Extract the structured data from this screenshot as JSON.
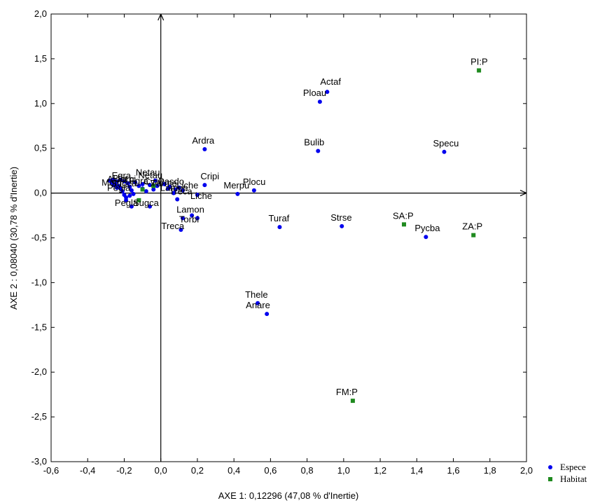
{
  "chart_data": {
    "type": "scatter",
    "title": "",
    "xlabel": "AXE 1: 0,12296 (47,08  % d'Inertie)",
    "ylabel": "AXE 2 : 0,08040 (30,78  % d'Inertie)",
    "xlim": [
      -0.6,
      2.0
    ],
    "ylim": [
      -3.0,
      2.0
    ],
    "x_ticks": [
      -0.6,
      -0.4,
      -0.2,
      0.0,
      0.2,
      0.4,
      0.6,
      0.8,
      1.0,
      1.2,
      1.4,
      1.6,
      1.8,
      2.0
    ],
    "y_ticks": [
      -3.0,
      -2.5,
      -2.0,
      -1.5,
      -1.0,
      -0.5,
      0.0,
      0.5,
      1.0,
      1.5,
      2.0
    ],
    "x_tick_labels": [
      "-0,6",
      "-0,4",
      "-0,2",
      "0,0",
      "0,2",
      "0,4",
      "0,6",
      "0,8",
      "1,0",
      "1,2",
      "1,4",
      "1,6",
      "1,8",
      "2,0"
    ],
    "y_tick_labels": [
      "-3,0",
      "-2,5",
      "-2,0",
      "-1,5",
      "-1,0",
      "-0,5",
      "0,0",
      "0,5",
      "1,0",
      "1,5",
      "2,0"
    ],
    "grid": false,
    "legend_position": "bottom-right",
    "series": [
      {
        "name": "Espece",
        "marker": "circle",
        "color": "#0000ee",
        "points": [
          {
            "label": "Actaf",
            "x": 0.91,
            "y": 1.13
          },
          {
            "label": "Ploau",
            "x": 0.87,
            "y": 1.02
          },
          {
            "label": "Bulib",
            "x": 0.86,
            "y": 0.47
          },
          {
            "label": "Specu",
            "x": 1.55,
            "y": 0.46
          },
          {
            "label": "Ardra",
            "x": 0.24,
            "y": 0.49
          },
          {
            "label": "Cripi",
            "x": 0.24,
            "y": 0.09
          },
          {
            "label": "Plocu",
            "x": 0.51,
            "y": 0.03
          },
          {
            "label": "Merpu",
            "x": 0.42,
            "y": -0.01
          },
          {
            "label": "Liche",
            "x": 0.2,
            "y": -0.02
          },
          {
            "label": "Netau",
            "x": -0.03,
            "y": 0.14
          },
          {
            "label": "Egra",
            "x": -0.1,
            "y": 0.1
          },
          {
            "label": "Turaf",
            "x": 0.65,
            "y": -0.38
          },
          {
            "label": "Strse",
            "x": 0.99,
            "y": -0.37
          },
          {
            "label": "Pycba",
            "x": 1.45,
            "y": -0.49
          },
          {
            "label": "Lamon",
            "x": 0.17,
            "y": -0.25
          },
          {
            "label": "Torbi",
            "x": 0.2,
            "y": -0.28
          },
          {
            "label": "Treca",
            "x": 0.11,
            "y": -0.41
          },
          {
            "label": "Pegla",
            "x": -0.16,
            "y": -0.15
          },
          {
            "label": "Sugca",
            "x": -0.06,
            "y": -0.15
          },
          {
            "label": "Thele",
            "x": 0.53,
            "y": -1.23
          },
          {
            "label": "Anare",
            "x": 0.58,
            "y": -1.35
          },
          {
            "label": "",
            "x": -0.28,
            "y": 0.14
          },
          {
            "label": "",
            "x": -0.27,
            "y": 0.12
          },
          {
            "label": "",
            "x": -0.26,
            "y": 0.15
          },
          {
            "label": "",
            "x": -0.25,
            "y": 0.1
          },
          {
            "label": "",
            "x": -0.24,
            "y": 0.13
          },
          {
            "label": "",
            "x": -0.23,
            "y": 0.08
          },
          {
            "label": "",
            "x": -0.22,
            "y": 0.05
          },
          {
            "label": "",
            "x": -0.21,
            "y": 0.02
          },
          {
            "label": "",
            "x": -0.2,
            "y": -0.02
          },
          {
            "label": "",
            "x": -0.19,
            "y": -0.05
          },
          {
            "label": "",
            "x": -0.18,
            "y": 0.11
          },
          {
            "label": "",
            "x": -0.17,
            "y": 0.07
          },
          {
            "label": "",
            "x": -0.16,
            "y": 0.03
          },
          {
            "label": "",
            "x": -0.15,
            "y": -0.01
          },
          {
            "label": "",
            "x": -0.14,
            "y": 0.12
          },
          {
            "label": "",
            "x": -0.12,
            "y": 0.08
          },
          {
            "label": "",
            "x": -0.1,
            "y": 0.05
          },
          {
            "label": "",
            "x": -0.08,
            "y": 0.02
          },
          {
            "label": "",
            "x": -0.06,
            "y": 0.09
          },
          {
            "label": "",
            "x": -0.04,
            "y": 0.04
          },
          {
            "label": "",
            "x": -0.02,
            "y": 0.08
          },
          {
            "label": "",
            "x": 0.02,
            "y": 0.1
          },
          {
            "label": "",
            "x": 0.05,
            "y": 0.07
          },
          {
            "label": "",
            "x": 0.08,
            "y": 0.04
          },
          {
            "label": "",
            "x": 0.1,
            "y": 0.06
          },
          {
            "label": "",
            "x": 0.12,
            "y": 0.03
          },
          {
            "label": "",
            "x": 0.07,
            "y": 0.0
          },
          {
            "label": "",
            "x": 0.09,
            "y": -0.07
          },
          {
            "label": "",
            "x": -0.19,
            "y": -0.08
          },
          {
            "label": "",
            "x": -0.24,
            "y": 0.06
          },
          {
            "label": "",
            "x": -0.26,
            "y": 0.09
          },
          {
            "label": "",
            "x": -0.22,
            "y": 0.15
          },
          {
            "label": "",
            "x": -0.2,
            "y": 0.13
          },
          {
            "label": "",
            "x": -0.17,
            "y": -0.03
          },
          {
            "label": "",
            "x": 0.04,
            "y": 0.05
          },
          {
            "label": "",
            "x": 0.12,
            "y": -0.28
          }
        ]
      },
      {
        "name": "Habitat",
        "marker": "square",
        "color": "#1f8a1f",
        "points": [
          {
            "label": "PI:P",
            "x": 1.74,
            "y": 1.37
          },
          {
            "label": "SA:P",
            "x": 1.33,
            "y": -0.35
          },
          {
            "label": "ZA:P",
            "x": 1.71,
            "y": -0.47
          },
          {
            "label": "FM:P",
            "x": 1.05,
            "y": -2.32
          },
          {
            "label": "",
            "x": -0.12,
            "y": -0.08
          },
          {
            "label": "",
            "x": -0.1,
            "y": 0.04
          },
          {
            "label": "",
            "x": -0.04,
            "y": 0.08
          }
        ]
      }
    ],
    "cluster_labels": [
      "Netau",
      "Egra",
      "Cyaca",
      "Turme",
      "Pasdo",
      "Alcat",
      "Pegla",
      "Sugca",
      "Torbi",
      "Lamon",
      "Treca",
      "Liche",
      "Motfl"
    ]
  },
  "legend": {
    "items": [
      {
        "name": "Espece",
        "marker": "circle",
        "color": "#0000ee"
      },
      {
        "name": "Habitat",
        "marker": "square",
        "color": "#1f8a1f"
      }
    ]
  }
}
